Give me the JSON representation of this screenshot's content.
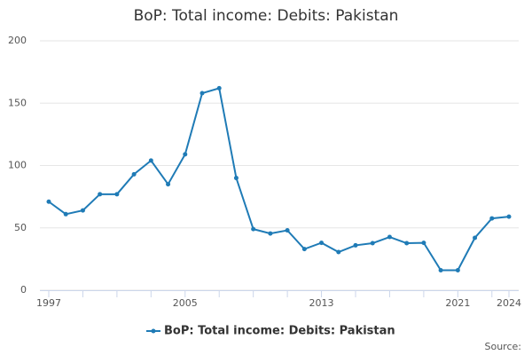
{
  "chart_data": {
    "type": "line",
    "title": "BoP: Total income: Debits: Pakistan",
    "x": [
      1997,
      1998,
      1999,
      2000,
      2001,
      2002,
      2003,
      2004,
      2005,
      2006,
      2007,
      2008,
      2009,
      2010,
      2011,
      2012,
      2013,
      2014,
      2015,
      2016,
      2017,
      2018,
      2019,
      2020,
      2021,
      2022,
      2023,
      2024
    ],
    "series": [
      {
        "name": "BoP: Total income: Debits: Pakistan",
        "color": "#1f7bb6",
        "values": [
          71,
          61,
          64,
          77,
          77,
          93,
          104,
          85,
          109,
          158,
          162,
          90,
          49,
          45.5,
          48,
          33,
          38,
          30.6,
          36,
          37.7,
          42.7,
          37.7,
          38,
          16,
          16,
          42,
          57.6,
          59
        ]
      }
    ],
    "xlim": [
      1997,
      2024
    ],
    "xticks": [
      1997,
      2005,
      2013,
      2021,
      2024
    ],
    "xminorticks": [
      1999,
      2001,
      2003,
      2007,
      2009,
      2011,
      2015,
      2017,
      2019,
      2023
    ],
    "ylim": [
      0,
      200
    ],
    "yticks": [
      0,
      50,
      100,
      150,
      200
    ],
    "grid": true,
    "legend": "bottom",
    "source": "Source:"
  }
}
